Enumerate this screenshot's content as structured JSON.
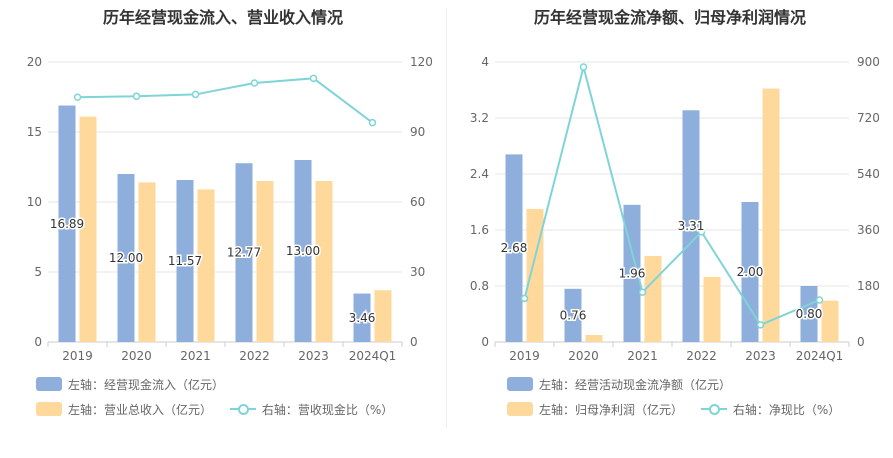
{
  "colors": {
    "bar_primary": "#8eaedc",
    "bar_secondary": "#ffd89b",
    "line": "#7fd4d8",
    "axis_text": "#666666",
    "grid": "#e6e6e6",
    "title": "#333333"
  },
  "chart_data": [
    {
      "type": "bar+line",
      "title": "历年经营现金流入、营业收入情况",
      "categories": [
        "2019",
        "2020",
        "2021",
        "2022",
        "2023",
        "2024Q1"
      ],
      "left_axis": {
        "min": 0,
        "max": 20,
        "ticks": [
          "0",
          "5",
          "10",
          "15",
          "20"
        ]
      },
      "right_axis": {
        "min": 0,
        "max": 120,
        "ticks": [
          "0",
          "30",
          "60",
          "90",
          "120"
        ]
      },
      "series": [
        {
          "name": "左轴：经营现金流入（亿元）",
          "kind": "bar",
          "axis": "left",
          "color": "#8eaedc",
          "values": [
            16.89,
            12.0,
            11.57,
            12.77,
            13.0,
            3.46
          ],
          "labels": [
            "16.89",
            "12.00",
            "11.57",
            "12.77",
            "13.00",
            "3.46"
          ]
        },
        {
          "name": "左轴：营业总收入（亿元）",
          "kind": "bar",
          "axis": "left",
          "color": "#ffd89b",
          "values": [
            16.1,
            11.4,
            10.9,
            11.5,
            11.5,
            3.7
          ]
        },
        {
          "name": "右轴：营收现金比（%）",
          "kind": "line",
          "axis": "right",
          "color": "#7fd4d8",
          "values": [
            104.9,
            105.3,
            106.1,
            111.0,
            113.0,
            94.0
          ]
        }
      ],
      "legend": [
        "左轴：经营现金流入（亿元）",
        "左轴：营业总收入（亿元）",
        "右轴：营收现金比（%）"
      ]
    },
    {
      "type": "bar+line",
      "title": "历年经营现金流净额、归母净利润情况",
      "categories": [
        "2019",
        "2020",
        "2021",
        "2022",
        "2023",
        "2024Q1"
      ],
      "left_axis": {
        "min": 0,
        "max": 4,
        "ticks": [
          "0",
          "0.8",
          "1.6",
          "2.4",
          "3.2",
          "4"
        ]
      },
      "right_axis": {
        "min": 0,
        "max": 900,
        "ticks": [
          "0",
          "180",
          "360",
          "540",
          "720",
          "900"
        ]
      },
      "series": [
        {
          "name": "左轴：经营活动现金流净额（亿元）",
          "kind": "bar",
          "axis": "left",
          "color": "#8eaedc",
          "values": [
            2.68,
            0.76,
            1.96,
            3.31,
            2.0,
            0.8
          ],
          "labels": [
            "2.68",
            "0.76",
            "1.96",
            "3.31",
            "2.00",
            "0.80"
          ]
        },
        {
          "name": "左轴：归母净利润（亿元）",
          "kind": "bar",
          "axis": "left",
          "color": "#ffd89b",
          "values": [
            1.9,
            0.1,
            1.23,
            0.93,
            3.62,
            0.59
          ]
        },
        {
          "name": "右轴：净现比（%）",
          "kind": "line",
          "axis": "right",
          "color": "#7fd4d8",
          "values": [
            140,
            884,
            160,
            354,
            55,
            135
          ]
        }
      ],
      "legend": [
        "左轴：经营活动现金流净额（亿元）",
        "左轴：归母净利润（亿元）",
        "右轴：净现比（%）"
      ]
    }
  ]
}
